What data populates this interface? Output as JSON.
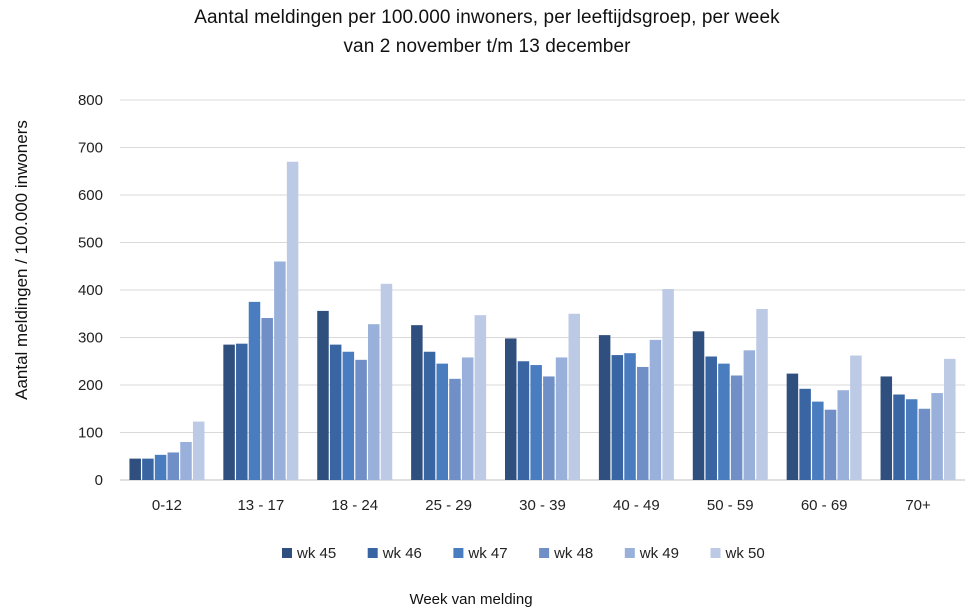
{
  "chart_data": {
    "type": "bar",
    "title": "Aantal meldingen per 100.000 inwoners, per leeftijdsgroep, per week",
    "subtitle": "van 2 november t/m 13 december",
    "xlabel": "Week van melding",
    "ylabel": "Aantal meldingen / 100.000 inwoners",
    "ylim": [
      0,
      800
    ],
    "yticks": [
      "0",
      "100",
      "200",
      "300",
      "400",
      "500",
      "600",
      "700",
      "800"
    ],
    "grid": true,
    "legend_position": "bottom",
    "categories": [
      "0-12",
      "13 - 17",
      "18 - 24",
      "25 - 29",
      "30 - 39",
      "40 - 49",
      "50 - 59",
      "60 - 69",
      "70+"
    ],
    "series": [
      {
        "name": "wk 45",
        "color": "#2f4f7f",
        "values": [
          45,
          285,
          356,
          326,
          298,
          305,
          313,
          224,
          218
        ]
      },
      {
        "name": "wk 46",
        "color": "#3a65a3",
        "values": [
          45,
          287,
          285,
          270,
          250,
          263,
          260,
          192,
          180
        ]
      },
      {
        "name": "wk 47",
        "color": "#4a7cc0",
        "values": [
          53,
          375,
          270,
          245,
          242,
          267,
          245,
          165,
          170
        ]
      },
      {
        "name": "wk 48",
        "color": "#6f8fc6",
        "values": [
          58,
          341,
          253,
          213,
          218,
          238,
          220,
          148,
          150
        ]
      },
      {
        "name": "wk 49",
        "color": "#98b0da",
        "values": [
          80,
          460,
          328,
          258,
          258,
          295,
          273,
          189,
          183
        ]
      },
      {
        "name": "wk 50",
        "color": "#bccae5",
        "values": [
          123,
          670,
          413,
          347,
          350,
          402,
          360,
          262,
          255
        ]
      }
    ]
  }
}
